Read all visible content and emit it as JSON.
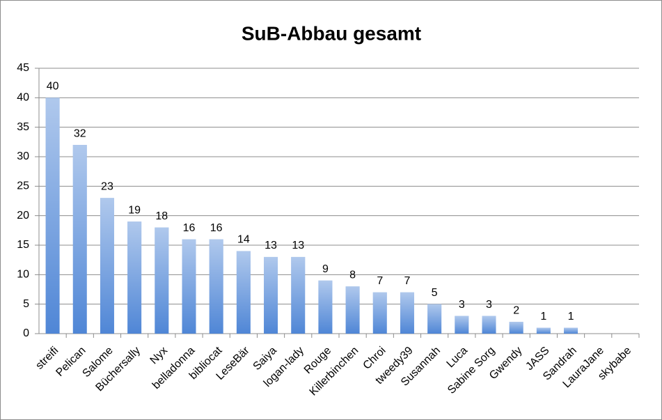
{
  "chart_data": {
    "type": "bar",
    "title": "SuB-Abbau gesamt",
    "categories": [
      "streifi",
      "Pelican",
      "Salome",
      "Büchersally",
      "Nyx",
      "belladonna",
      "bibliocat",
      "LeseBär",
      "Saiya",
      "logan-lady",
      "Rouge",
      "Killerbinchen",
      "Chroi",
      "tweedy39",
      "Susannah",
      "Luca",
      "Sabine Sorg",
      "Gwendy",
      "JASS",
      "Sandrah",
      "LauraJane",
      "skybabe"
    ],
    "values": [
      40,
      32,
      23,
      19,
      18,
      16,
      16,
      14,
      13,
      13,
      9,
      8,
      7,
      7,
      5,
      3,
      3,
      2,
      1,
      1,
      null,
      null
    ],
    "color": "#4f86d6",
    "ylim": [
      0,
      45
    ],
    "yticks": [
      0,
      5,
      10,
      15,
      20,
      25,
      30,
      35,
      40,
      45
    ],
    "grid": true
  }
}
